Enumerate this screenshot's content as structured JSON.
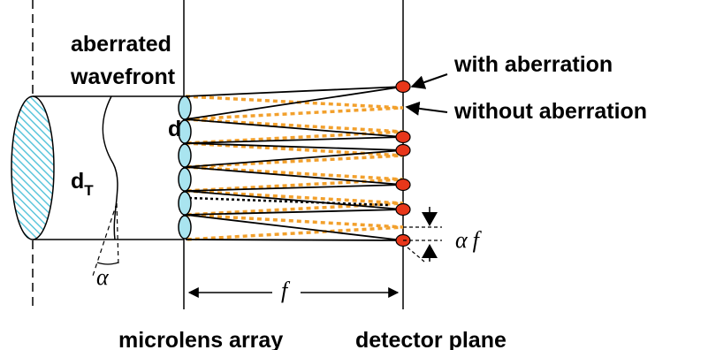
{
  "labels": {
    "aberrated_line1": "aberrated",
    "aberrated_line2": "wavefront",
    "with_aberration": "with aberration",
    "without_aberration": "without aberration",
    "d": "d",
    "d_T_main": "d",
    "d_T_sub": "T",
    "alpha": "α",
    "alpha_f_alpha": "α",
    "alpha_f_f": "f",
    "focal": "f",
    "microlens_array": "microlens array",
    "detector_plane": "detector plane"
  },
  "colors": {
    "spot": "#e8371a",
    "lenslet": "#a9e4ef",
    "lens_hatch": "#5cc6dc",
    "ref_ray": "#f2a02c",
    "ray": "#000000"
  },
  "rays": {
    "ray_count": 6,
    "spot_count": 6
  }
}
